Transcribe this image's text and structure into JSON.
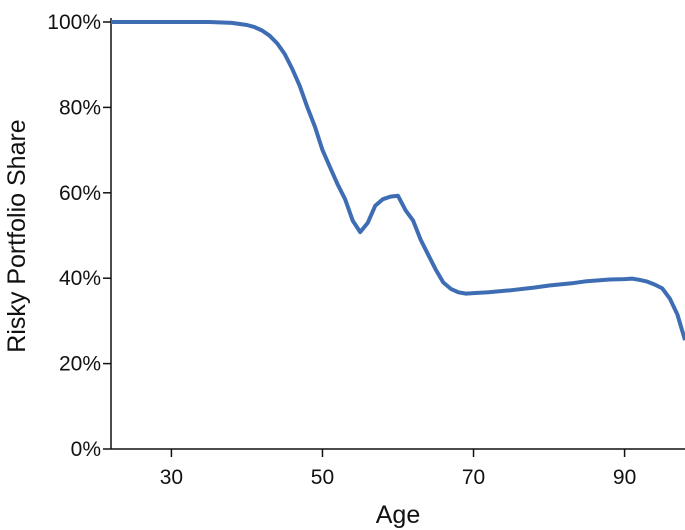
{
  "chart_data": {
    "type": "line",
    "title": "",
    "xlabel": "Age",
    "ylabel": "Risky Portfolio Share",
    "xlim": [
      22,
      98
    ],
    "ylim": [
      0,
      100
    ],
    "x_ticks": [
      30,
      50,
      70,
      90
    ],
    "x_tick_labels": [
      "30",
      "50",
      "70",
      "90"
    ],
    "y_ticks": [
      0,
      20,
      40,
      60,
      80,
      100
    ],
    "y_tick_labels": [
      "0%",
      "20%",
      "40%",
      "60%",
      "80%",
      "100%"
    ],
    "grid": false,
    "legend": "none",
    "series": [
      {
        "color": "#3e6db4",
        "x": [
          22,
          30,
          35,
          38,
          40,
          41,
          42,
          43,
          44,
          45,
          46,
          47,
          48,
          49,
          50,
          51,
          52,
          53,
          54,
          55,
          56,
          57,
          58,
          59,
          60,
          61,
          62,
          63,
          64,
          65,
          66,
          67,
          68,
          69,
          70,
          72,
          75,
          78,
          80,
          83,
          85,
          88,
          90,
          91,
          92,
          93,
          94,
          95,
          96,
          97,
          98
        ],
        "y": [
          100,
          100,
          100,
          99.8,
          99.3,
          98.8,
          98,
          96.8,
          95,
          92.5,
          89,
          85,
          80,
          75.5,
          70,
          66,
          62,
          58.5,
          53.5,
          50.8,
          53,
          57,
          58.5,
          59.1,
          59.3,
          55.9,
          53.5,
          49,
          45.5,
          42,
          39,
          37.5,
          36.7,
          36.4,
          36.5,
          36.7,
          37.2,
          37.8,
          38.3,
          38.8,
          39.3,
          39.7,
          39.8,
          39.9,
          39.6,
          39.2,
          38.5,
          37.6,
          35.2,
          31.5,
          25.5
        ]
      }
    ]
  }
}
